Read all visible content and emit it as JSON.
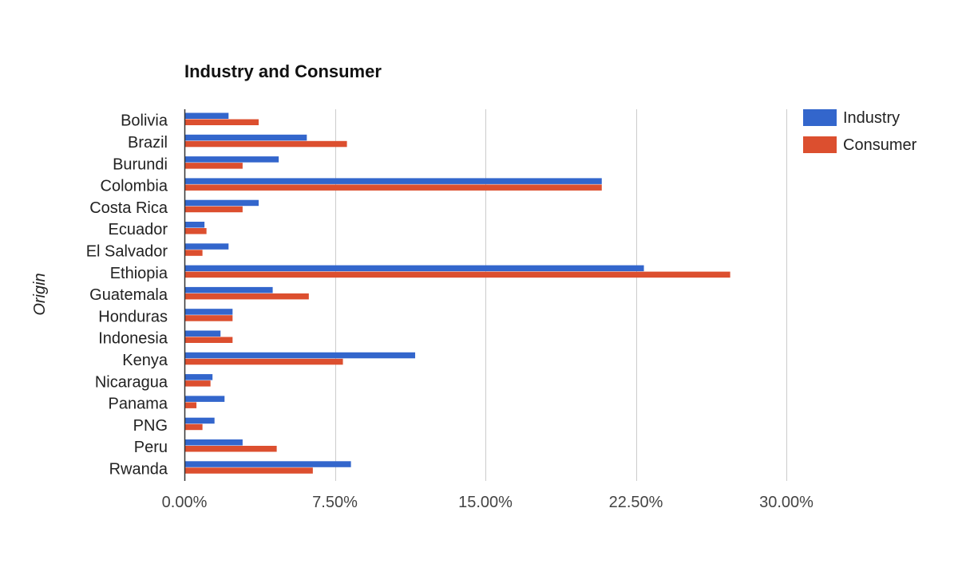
{
  "chart_data": {
    "type": "bar",
    "orientation": "horizontal",
    "title": "Industry and Consumer",
    "xlabel": "",
    "ylabel": "Origin",
    "xlim": [
      0,
      30
    ],
    "x_ticks": [
      "0.00%",
      "7.50%",
      "15.00%",
      "22.50%",
      "30.00%"
    ],
    "grid": true,
    "legend_position": "top-right",
    "categories": [
      "Bolivia",
      "Brazil",
      "Burundi",
      "Colombia",
      "Costa Rica",
      "Ecuador",
      "El Salvador",
      "Ethiopia",
      "Guatemala",
      "Honduras",
      "Indonesia",
      "Kenya",
      "Nicaragua",
      "Panama",
      "PNG",
      "Peru",
      "Rwanda"
    ],
    "series": [
      {
        "name": "Industry",
        "color": "#3366cc",
        "values": [
          2.2,
          6.1,
          4.7,
          20.8,
          3.7,
          1.0,
          2.2,
          22.9,
          4.4,
          2.4,
          1.8,
          11.5,
          1.4,
          2.0,
          1.5,
          2.9,
          8.3
        ]
      },
      {
        "name": "Consumer",
        "color": "#dc4f2f",
        "values": [
          3.7,
          8.1,
          2.9,
          20.8,
          2.9,
          1.1,
          0.9,
          27.2,
          6.2,
          2.4,
          2.4,
          7.9,
          1.3,
          0.6,
          0.9,
          4.6,
          6.4
        ]
      }
    ]
  }
}
